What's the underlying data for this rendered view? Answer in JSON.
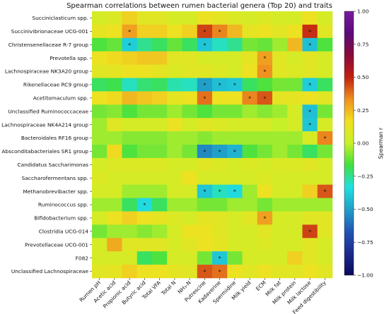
{
  "chart_data": {
    "type": "heatmap",
    "title": "Spearman correlations between rumen bacterial genera (Top 20) and traits",
    "rows": [
      "Succiniclasticum spp.",
      "Succinivibrionaceae UCG-001",
      "Christensenellaceae R-7 group",
      "Prevotella spp.",
      "Lachnospiraceae NK3A20 group",
      "Rikenellaceae RC9 group",
      "Acetitomaculum spp.",
      "Unclassified Ruminococcaceae",
      "Lachnospiraceae NK4A214 group",
      "Bacteroidales RF16 group",
      "Absconditabacteriales SR1 group",
      "Candidatus Saccharimonas",
      "Saccharofermentans spp.",
      "Methanobrevibacter spp.",
      "Ruminococcus spp.",
      "Bifidobacterium spp.",
      "Clostridia UCG-014",
      "Prevotellaceae UCG-001",
      "F082",
      "Unclassified Lachnospiraceae"
    ],
    "columns": [
      "Rumen pH",
      "Acetic acid",
      "Propionic acid",
      "Butyric acid",
      "Total VFA",
      "Total N",
      "NH₃-N",
      "Putrescine",
      "Kadaverine",
      "Spermidine",
      "Milk yield",
      "ECM",
      "Milk fat",
      "Milk protein",
      "Milk lactose",
      "Feed digestibility"
    ],
    "values": [
      [
        0.05,
        0.08,
        0.2,
        0.1,
        0.1,
        0.05,
        0.05,
        0.15,
        0.12,
        0.08,
        0.05,
        0.08,
        0.05,
        0.05,
        0.15,
        0.05
      ],
      [
        0.12,
        0.15,
        0.3,
        0.2,
        0.2,
        0.15,
        0.2,
        0.45,
        0.35,
        0.25,
        0.12,
        0.15,
        0.1,
        0.15,
        0.48,
        0.1
      ],
      [
        -0.15,
        -0.12,
        -0.38,
        -0.25,
        -0.2,
        -0.12,
        -0.2,
        -0.4,
        -0.3,
        -0.25,
        -0.1,
        -0.12,
        -0.05,
        0.25,
        -0.42,
        -0.15
      ],
      [
        0.15,
        0.18,
        0.2,
        0.22,
        0.22,
        0.1,
        0.1,
        0.05,
        0.05,
        0.05,
        0.12,
        0.3,
        0.1,
        0.05,
        0.1,
        0.05
      ],
      [
        0.1,
        0.12,
        0.15,
        0.15,
        0.12,
        0.08,
        0.1,
        0.1,
        0.08,
        0.05,
        0.15,
        0.33,
        0.1,
        0.08,
        0.1,
        0.05
      ],
      [
        -0.2,
        -0.18,
        -0.3,
        -0.22,
        -0.2,
        -0.28,
        -0.3,
        -0.5,
        -0.42,
        -0.4,
        -0.2,
        -0.15,
        -0.1,
        -0.1,
        -0.38,
        -0.2
      ],
      [
        0.15,
        0.18,
        0.25,
        0.22,
        0.2,
        0.12,
        0.15,
        0.38,
        0.15,
        0.15,
        0.35,
        0.42,
        0.12,
        0.12,
        0.15,
        0.1
      ],
      [
        -0.1,
        -0.08,
        -0.15,
        -0.1,
        -0.1,
        -0.05,
        -0.1,
        -0.15,
        -0.1,
        -0.1,
        -0.05,
        -0.08,
        -0.05,
        0.05,
        -0.42,
        -0.1
      ],
      [
        -0.05,
        0.1,
        0.05,
        0.05,
        0.05,
        0.15,
        0.05,
        0.1,
        0.08,
        0.05,
        0.05,
        0.05,
        0.0,
        0.05,
        -0.4,
        0.05
      ],
      [
        -0.05,
        -0.05,
        -0.08,
        -0.08,
        -0.08,
        -0.05,
        -0.05,
        -0.08,
        -0.05,
        -0.05,
        -0.05,
        -0.05,
        -0.05,
        -0.05,
        0.05,
        0.35
      ],
      [
        -0.1,
        0.18,
        -0.15,
        -0.1,
        -0.1,
        -0.05,
        -0.1,
        -0.55,
        -0.5,
        -0.45,
        -0.15,
        -0.1,
        -0.05,
        -0.1,
        -0.2,
        -0.1
      ],
      [
        0.05,
        0.08,
        0.08,
        0.08,
        0.08,
        0.05,
        0.05,
        0.1,
        0.08,
        0.05,
        0.08,
        0.05,
        0.08,
        0.08,
        0.1,
        0.05
      ],
      [
        0.08,
        0.05,
        0.05,
        0.05,
        0.05,
        0.05,
        0.15,
        0.05,
        0.05,
        0.05,
        0.05,
        0.08,
        0.05,
        0.05,
        0.05,
        0.05
      ],
      [
        0.05,
        0.05,
        -0.05,
        -0.05,
        -0.05,
        0.05,
        0.05,
        -0.4,
        -0.3,
        -0.35,
        -0.05,
        0.15,
        0.05,
        0.05,
        0.2,
        0.42
      ],
      [
        -0.05,
        -0.05,
        -0.2,
        -0.35,
        -0.2,
        -0.05,
        -0.05,
        -0.1,
        -0.1,
        -0.05,
        -0.05,
        -0.1,
        -0.05,
        -0.05,
        -0.05,
        -0.05
      ],
      [
        0.05,
        0.15,
        0.2,
        0.15,
        0.12,
        0.08,
        0.05,
        0.12,
        0.1,
        0.05,
        0.1,
        0.3,
        0.05,
        0.05,
        0.1,
        0.1
      ],
      [
        -0.1,
        -0.05,
        -0.05,
        -0.08,
        -0.05,
        0.05,
        0.15,
        0.15,
        0.1,
        0.05,
        0.05,
        0.1,
        0.05,
        0.05,
        0.45,
        0.1
      ],
      [
        0.05,
        0.28,
        0.1,
        0.1,
        0.1,
        0.05,
        0.1,
        0.15,
        0.12,
        0.05,
        0.05,
        0.08,
        0.05,
        0.05,
        0.1,
        0.05
      ],
      [
        0.05,
        0.05,
        0.05,
        -0.2,
        -0.15,
        0.05,
        0.05,
        -0.1,
        -0.4,
        -0.1,
        0.05,
        0.05,
        0.05,
        0.2,
        0.1,
        0.05
      ],
      [
        0.1,
        0.12,
        0.2,
        0.15,
        0.15,
        0.12,
        0.1,
        0.42,
        0.38,
        0.15,
        0.1,
        0.15,
        0.1,
        0.1,
        0.15,
        0.1
      ]
    ],
    "significant": [
      [
        1,
        2
      ],
      [
        1,
        7
      ],
      [
        1,
        8
      ],
      [
        1,
        14
      ],
      [
        2,
        2
      ],
      [
        2,
        7
      ],
      [
        2,
        14
      ],
      [
        3,
        11
      ],
      [
        4,
        11
      ],
      [
        5,
        7
      ],
      [
        5,
        8
      ],
      [
        5,
        9
      ],
      [
        5,
        14
      ],
      [
        6,
        7
      ],
      [
        6,
        10
      ],
      [
        6,
        11
      ],
      [
        7,
        14
      ],
      [
        8,
        14
      ],
      [
        9,
        15
      ],
      [
        10,
        7
      ],
      [
        10,
        8
      ],
      [
        10,
        9
      ],
      [
        13,
        7
      ],
      [
        13,
        8
      ],
      [
        13,
        9
      ],
      [
        13,
        15
      ],
      [
        14,
        3
      ],
      [
        15,
        11
      ],
      [
        16,
        14
      ],
      [
        18,
        8
      ],
      [
        19,
        7
      ],
      [
        19,
        8
      ]
    ],
    "marker": "*",
    "colorbar": {
      "label": "Spearman r",
      "range": [
        -1.0,
        1.0
      ],
      "ticks": [
        -1.0,
        -0.75,
        -0.5,
        -0.25,
        0.0,
        0.25,
        0.5,
        0.75,
        1.0
      ],
      "tick_labels": [
        "−1.00",
        "−0.75",
        "−0.50",
        "−0.25",
        "0.00",
        "0.25",
        "0.50",
        "0.75",
        "1.00"
      ]
    },
    "colormap": [
      "#0a0a5a",
      "#1a2a8c",
      "#2255b4",
      "#20a0c8",
      "#20e0e0",
      "#40e040",
      "#c8f028",
      "#f0e020",
      "#f09020",
      "#c02010",
      "#8a0a3a",
      "#5a0a7a",
      "#7a1aa0"
    ]
  }
}
